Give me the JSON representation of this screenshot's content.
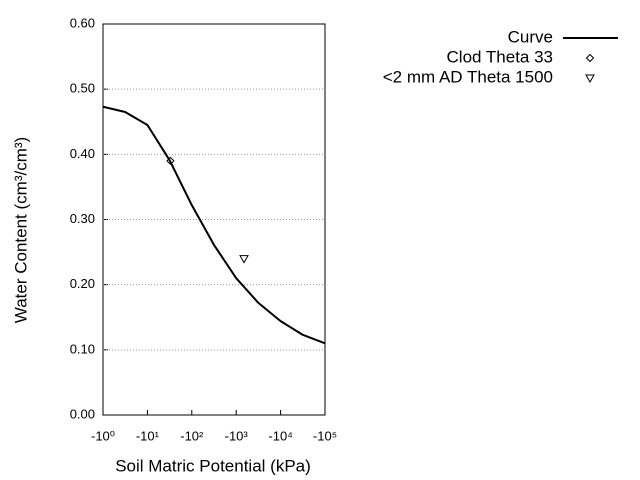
{
  "chart_data": {
    "type": "line",
    "x_label": "Soil Matric Potential (kPa)",
    "y_label": "Water Content (cm³/cm³)",
    "xscale": "log",
    "xlim": [
      -1,
      -100000
    ],
    "xticks": [
      {
        "value": -1,
        "label": "-10⁰"
      },
      {
        "value": -10,
        "label": "-10¹"
      },
      {
        "value": -100,
        "label": "-10²"
      },
      {
        "value": -1000,
        "label": "-10³"
      },
      {
        "value": -10000,
        "label": "-10⁴"
      },
      {
        "value": -100000,
        "label": "-10⁵"
      }
    ],
    "ylim": [
      0,
      0.6
    ],
    "yticks": [
      {
        "value": 0,
        "label": "0.00"
      },
      {
        "value": 0.1,
        "label": "0.10"
      },
      {
        "value": 0.2,
        "label": "0.20"
      },
      {
        "value": 0.3,
        "label": "0.30"
      },
      {
        "value": 0.4,
        "label": "0.40"
      },
      {
        "value": 0.5,
        "label": "0.50"
      },
      {
        "value": 0.6,
        "label": "0.60"
      }
    ],
    "grid": true,
    "legend": "top-right",
    "series": [
      {
        "name": "Curve",
        "color": "#000000",
        "marker": "line",
        "x": [
          -1,
          -3.16,
          -10,
          -31.6,
          -100,
          -316,
          -1000,
          -3160,
          -10000,
          -31600,
          -100000
        ],
        "values": [
          0.473,
          0.465,
          0.445,
          0.391,
          0.322,
          0.261,
          0.21,
          0.172,
          0.144,
          0.123,
          0.11
        ]
      },
      {
        "name": "Clod Theta 33",
        "color": "#000000",
        "marker": "diamond",
        "x": [
          -33
        ],
        "values": [
          0.39
        ]
      },
      {
        "name": "<2 mm AD Theta 1500",
        "color": "#000000",
        "marker": "triangle-down",
        "x": [
          -1500
        ],
        "values": [
          0.24
        ]
      }
    ]
  }
}
